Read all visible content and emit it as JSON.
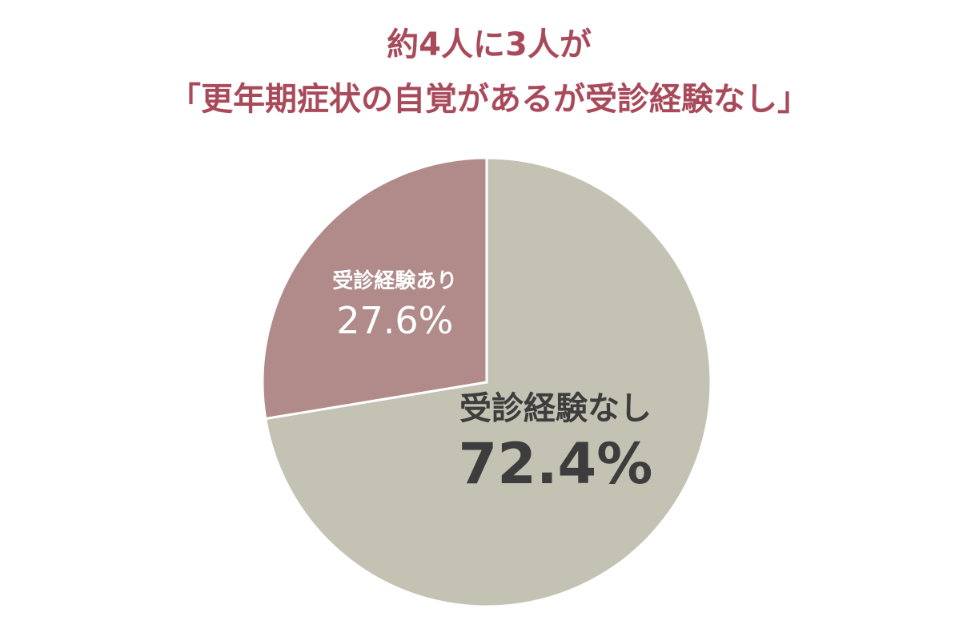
{
  "chart_data": {
    "type": "pie",
    "title": [
      "約4人に3人が",
      "「更年期症状の自覚があるが受診経験なし」"
    ],
    "categories": [
      "受診経験なし",
      "受診経験あり"
    ],
    "values": [
      72.4,
      27.6
    ],
    "value_labels": [
      "72.4%",
      "27.6%"
    ],
    "colors": [
      "#c4c2b3",
      "#b08b89"
    ]
  }
}
